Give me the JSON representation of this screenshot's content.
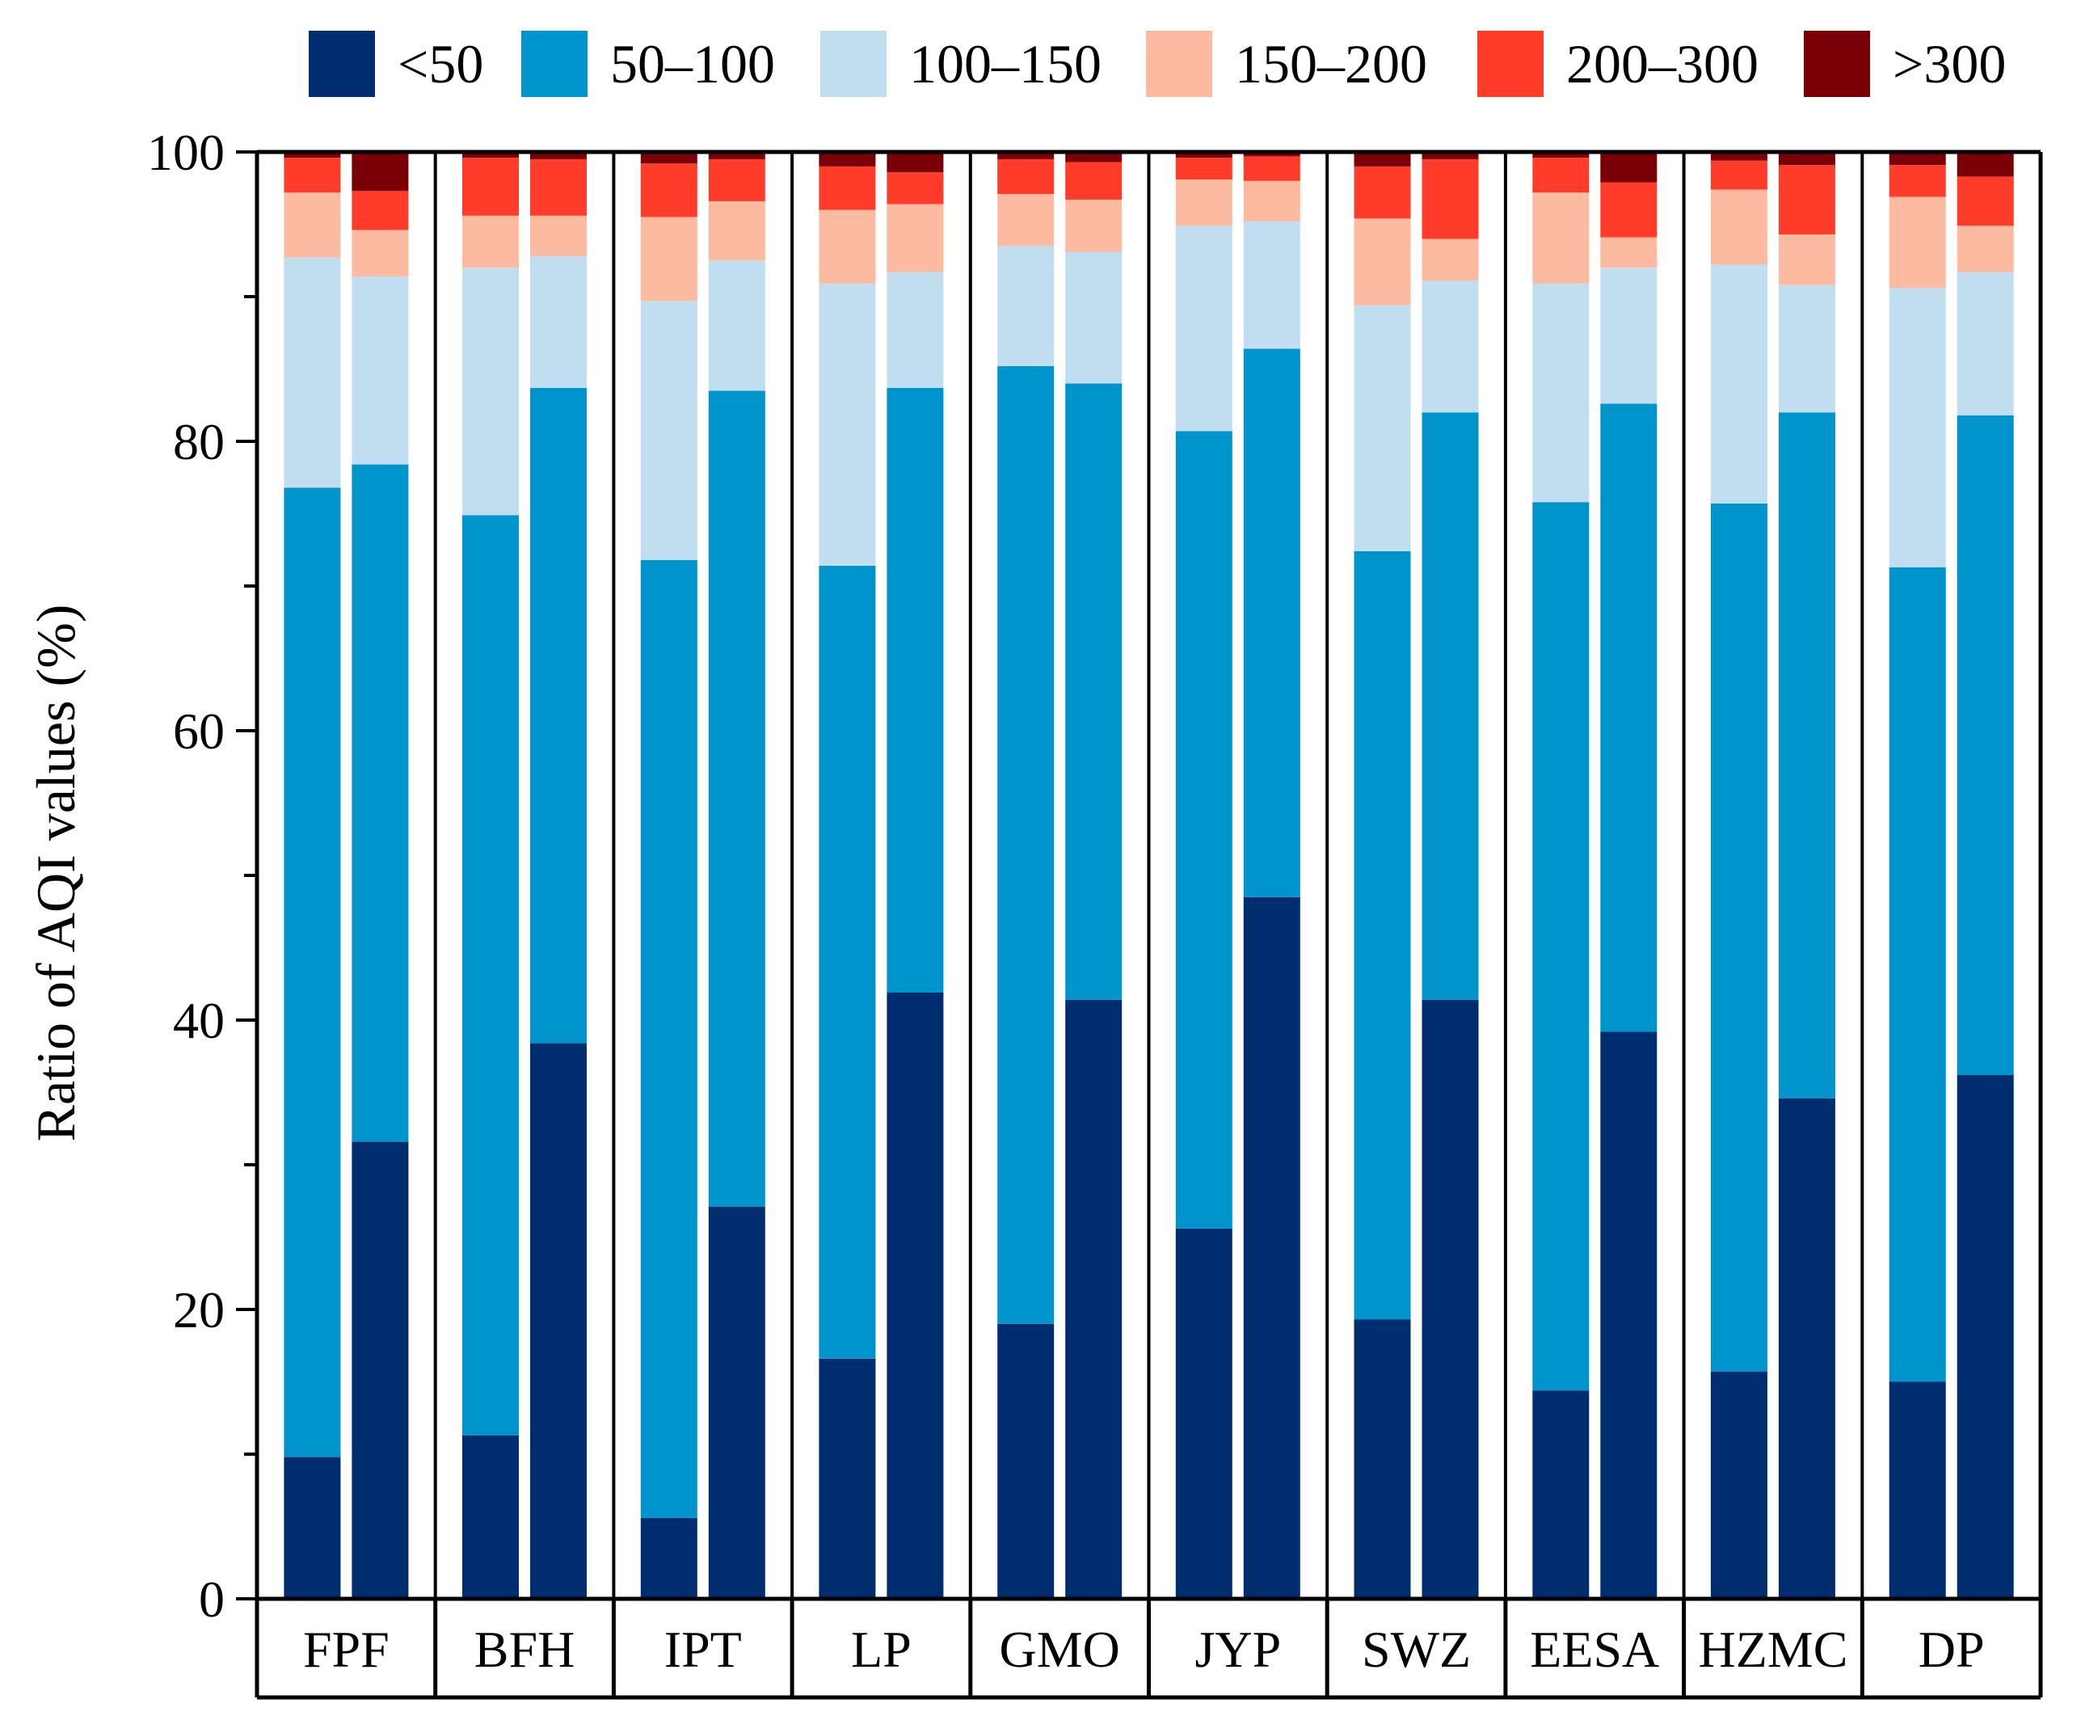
{
  "chart_data": {
    "type": "bar",
    "stacked": true,
    "ylabel": "Ratio of AQI values (%)",
    "xlabel": "",
    "ylim": [
      0,
      100
    ],
    "yticks": [
      0,
      20,
      40,
      60,
      80,
      100
    ],
    "legend_position": "top",
    "groups": [
      "FPF",
      "BFH",
      "IPT",
      "LP",
      "GMO",
      "JYP",
      "SWZ",
      "EESA",
      "HZMC",
      "DP"
    ],
    "bars_per_group": 2,
    "series": [
      {
        "name": "<50",
        "color": "#002D6E",
        "values": [
          9.8,
          31.6,
          11.3,
          38.4,
          5.6,
          27.1,
          16.6,
          41.9,
          19.0,
          41.4,
          25.6,
          48.5,
          19.3,
          41.4,
          14.4,
          39.2,
          15.7,
          34.6,
          15.0,
          36.2
        ]
      },
      {
        "name": "50–100",
        "color": "#0094CD",
        "values": [
          67.0,
          46.8,
          63.6,
          45.3,
          66.2,
          56.4,
          54.8,
          41.8,
          66.2,
          42.6,
          55.1,
          37.9,
          53.1,
          40.6,
          61.4,
          43.4,
          60.0,
          47.4,
          56.3,
          45.6
        ]
      },
      {
        "name": "100–150",
        "color": "#C1DDF0",
        "values": [
          15.9,
          13.0,
          17.1,
          9.1,
          17.9,
          9.0,
          19.5,
          8.0,
          8.3,
          9.1,
          14.2,
          8.8,
          17.0,
          9.1,
          15.1,
          9.4,
          16.5,
          8.8,
          19.3,
          9.9
        ]
      },
      {
        "name": "150–200",
        "color": "#FCBBA1",
        "values": [
          4.5,
          3.2,
          3.6,
          2.8,
          5.8,
          4.1,
          5.1,
          4.7,
          3.6,
          3.6,
          3.2,
          2.8,
          6.0,
          2.9,
          6.3,
          2.1,
          5.2,
          3.5,
          6.3,
          3.2
        ]
      },
      {
        "name": "200–300",
        "color": "#FF3B2A",
        "values": [
          2.4,
          2.7,
          4.0,
          3.9,
          3.7,
          2.9,
          3.0,
          2.2,
          2.4,
          2.6,
          1.5,
          1.7,
          3.6,
          5.5,
          2.4,
          3.8,
          2.0,
          4.8,
          2.2,
          3.4
        ]
      },
      {
        "name": ">300",
        "color": "#7A0008",
        "values": [
          0.4,
          2.7,
          0.4,
          0.5,
          0.8,
          0.5,
          1.0,
          1.4,
          0.5,
          0.7,
          0.4,
          0.3,
          1.0,
          0.5,
          0.4,
          2.0,
          0.6,
          0.9,
          0.9,
          1.7
        ]
      }
    ]
  }
}
